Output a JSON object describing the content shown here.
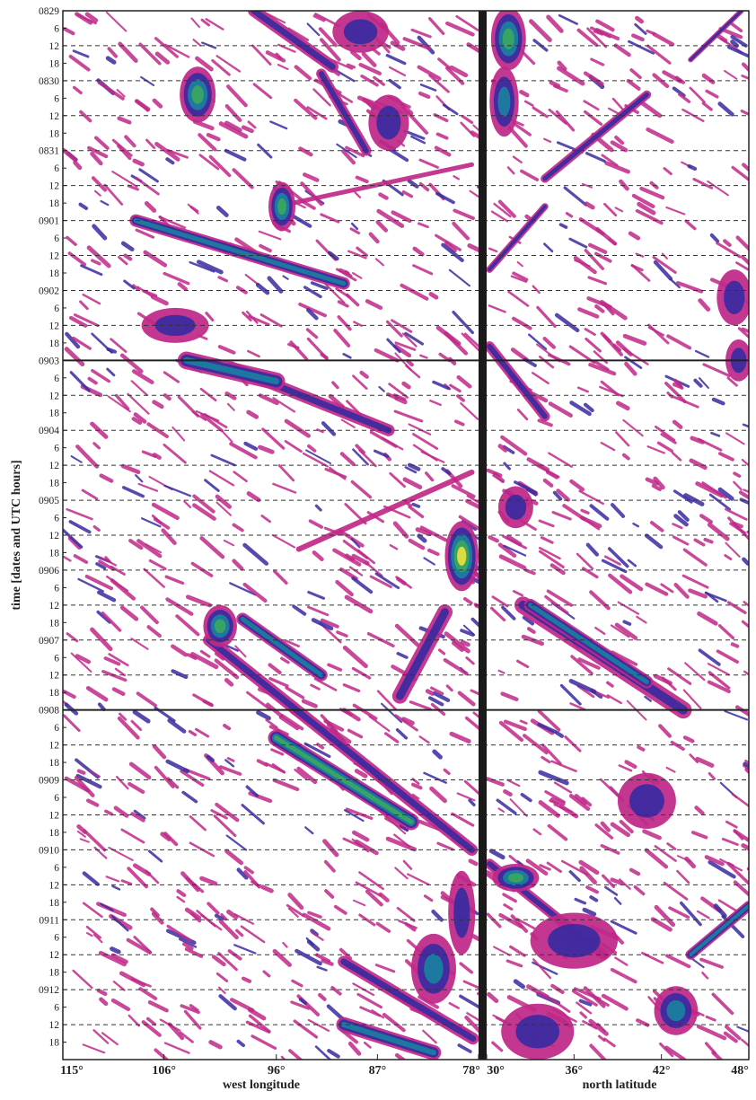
{
  "chart_data": {
    "type": "heatmap",
    "title": "",
    "ylabel": "time [dates and UTC hours]",
    "left_panel": {
      "xlabel": "west longitude",
      "xticks": [
        "115°",
        "106°",
        "96°",
        "87°",
        "78°"
      ],
      "xlim": [
        115,
        78
      ]
    },
    "right_panel": {
      "xlabel": "north latitude",
      "xticks": [
        "30°",
        "36°",
        "42°",
        "48°"
      ],
      "xlim": [
        30,
        48
      ]
    },
    "y_dates": [
      "0829",
      "0830",
      "0831",
      "0901",
      "0902",
      "0903",
      "0904",
      "0905",
      "0906",
      "0907",
      "0908",
      "0909",
      "0910",
      "0911",
      "0912"
    ],
    "y_hours": [
      "6",
      "12",
      "18"
    ],
    "y_range": [
      "0829 00",
      "0913 00"
    ],
    "grid": "dashed horizontal line every 12 h",
    "solid_separators": [
      "0903",
      "0908"
    ],
    "color_scale": [
      "#ffffff",
      "#c02888",
      "#3a2aa0",
      "#1a7fa0",
      "#3aa860",
      "#e8e040"
    ],
    "features": {
      "left": [
        {
          "kind": "streak",
          "x0": 108.5,
          "t0": 3.0,
          "x1": 90,
          "t1": 3.9,
          "w": 5,
          "lvl": 3
        },
        {
          "kind": "streak",
          "x0": 100,
          "t0": 5.1,
          "x1": 86,
          "t1": 6.0,
          "w": 7,
          "lvl": 2
        },
        {
          "kind": "streak",
          "x0": 104,
          "t0": 5.0,
          "x1": 96,
          "t1": 5.3,
          "w": 7,
          "lvl": 3
        },
        {
          "kind": "streak",
          "x0": 102,
          "t0": 9.0,
          "x1": 78.6,
          "t1": 12.0,
          "w": 7,
          "lvl": 2
        },
        {
          "kind": "streak",
          "x0": 99,
          "t0": 8.7,
          "x1": 92,
          "t1": 9.5,
          "w": 5,
          "lvl": 3
        },
        {
          "kind": "streak",
          "x0": 96,
          "t0": 10.4,
          "x1": 84,
          "t1": 11.6,
          "w": 5,
          "lvl": 4
        },
        {
          "kind": "streak",
          "x0": 90,
          "t0": 13.6,
          "x1": 78.5,
          "t1": 14.7,
          "w": 7,
          "lvl": 2
        },
        {
          "kind": "streak",
          "x0": 90,
          "t0": 14.5,
          "x1": 82,
          "t1": 14.9,
          "w": 6,
          "lvl": 3
        },
        {
          "kind": "streak",
          "x0": 81,
          "t0": 8.6,
          "x1": 85,
          "t1": 9.8,
          "w": 9,
          "lvl": 2
        },
        {
          "kind": "streak",
          "x0": 98,
          "t0": 0.0,
          "x1": 91,
          "t1": 0.8,
          "w": 7,
          "lvl": 2
        },
        {
          "kind": "streak",
          "x0": 92,
          "t0": 0.9,
          "x1": 88,
          "t1": 2.0,
          "w": 6,
          "lvl": 2
        },
        {
          "kind": "streak",
          "x0": 94,
          "t0": 7.7,
          "x1": 78.6,
          "t1": 6.6,
          "w": 6,
          "lvl": 1
        },
        {
          "kind": "streak",
          "x0": 96,
          "t0": 2.8,
          "x1": 78.6,
          "t1": 2.2,
          "w": 5,
          "lvl": 1
        },
        {
          "kind": "blob",
          "x": 103,
          "t": 1.2,
          "rx": 1.6,
          "rt": 0.4,
          "lvl": 4
        },
        {
          "kind": "blob",
          "x": 95.5,
          "t": 2.8,
          "rx": 1.2,
          "rt": 0.35,
          "lvl": 4
        },
        {
          "kind": "blob",
          "x": 105,
          "t": 4.5,
          "rx": 3,
          "rt": 0.25,
          "lvl": 2
        },
        {
          "kind": "blob",
          "x": 79.5,
          "t": 7.8,
          "rx": 1.5,
          "rt": 0.5,
          "lvl": 5
        },
        {
          "kind": "blob",
          "x": 101,
          "t": 8.8,
          "rx": 1.5,
          "rt": 0.3,
          "lvl": 4
        },
        {
          "kind": "blob",
          "x": 88.5,
          "t": 0.3,
          "rx": 2.5,
          "rt": 0.3,
          "lvl": 2
        },
        {
          "kind": "blob",
          "x": 86,
          "t": 1.6,
          "rx": 1.8,
          "rt": 0.4,
          "lvl": 2
        },
        {
          "kind": "blob",
          "x": 82,
          "t": 13.7,
          "rx": 2,
          "rt": 0.5,
          "lvl": 3
        },
        {
          "kind": "blob",
          "x": 79.5,
          "t": 12.9,
          "rx": 1.2,
          "rt": 0.6,
          "lvl": 2
        }
      ],
      "right": [
        {
          "kind": "streak",
          "x0": 32.5,
          "t0": 8.5,
          "x1": 43.5,
          "t1": 10.0,
          "w": 10,
          "lvl": 2
        },
        {
          "kind": "streak",
          "x0": 33,
          "t0": 8.5,
          "x1": 41,
          "t1": 9.6,
          "w": 5,
          "lvl": 3
        },
        {
          "kind": "streak",
          "x0": 34,
          "t0": 2.4,
          "x1": 41,
          "t1": 1.2,
          "w": 5,
          "lvl": 2
        },
        {
          "kind": "streak",
          "x0": 44,
          "t0": 0.7,
          "x1": 47.5,
          "t1": 0.0,
          "w": 3,
          "lvl": 2
        },
        {
          "kind": "streak",
          "x0": 30.2,
          "t0": 3.7,
          "x1": 34,
          "t1": 2.8,
          "w": 4,
          "lvl": 2
        },
        {
          "kind": "streak",
          "x0": 30.2,
          "t0": 4.8,
          "x1": 34,
          "t1": 5.8,
          "w": 6,
          "lvl": 2
        },
        {
          "kind": "streak",
          "x0": 30.2,
          "t0": 12.2,
          "x1": 38,
          "t1": 13.5,
          "w": 6,
          "lvl": 2
        },
        {
          "kind": "streak",
          "x0": 44,
          "t0": 13.5,
          "x1": 48,
          "t1": 12.8,
          "w": 4,
          "lvl": 3
        },
        {
          "kind": "blob",
          "x": 31.5,
          "t": 0.4,
          "rx": 1.2,
          "rt": 0.45,
          "lvl": 4
        },
        {
          "kind": "blob",
          "x": 31.2,
          "t": 1.3,
          "rx": 1,
          "rt": 0.5,
          "lvl": 3
        },
        {
          "kind": "blob",
          "x": 47,
          "t": 4.1,
          "rx": 1.2,
          "rt": 0.4,
          "lvl": 2
        },
        {
          "kind": "blob",
          "x": 47.3,
          "t": 5.0,
          "rx": 0.9,
          "rt": 0.3,
          "lvl": 2
        },
        {
          "kind": "blob",
          "x": 32,
          "t": 7.1,
          "rx": 1.2,
          "rt": 0.3,
          "lvl": 2
        },
        {
          "kind": "blob",
          "x": 32,
          "t": 12.4,
          "rx": 1.6,
          "rt": 0.2,
          "lvl": 4
        },
        {
          "kind": "blob",
          "x": 36,
          "t": 13.3,
          "rx": 3,
          "rt": 0.4,
          "lvl": 2
        },
        {
          "kind": "blob",
          "x": 43,
          "t": 14.3,
          "rx": 1.5,
          "rt": 0.35,
          "lvl": 3
        },
        {
          "kind": "blob",
          "x": 33.5,
          "t": 14.6,
          "rx": 2.5,
          "rt": 0.4,
          "lvl": 2
        },
        {
          "kind": "blob",
          "x": 41,
          "t": 11.3,
          "rx": 2,
          "rt": 0.4,
          "lvl": 2
        }
      ]
    }
  }
}
